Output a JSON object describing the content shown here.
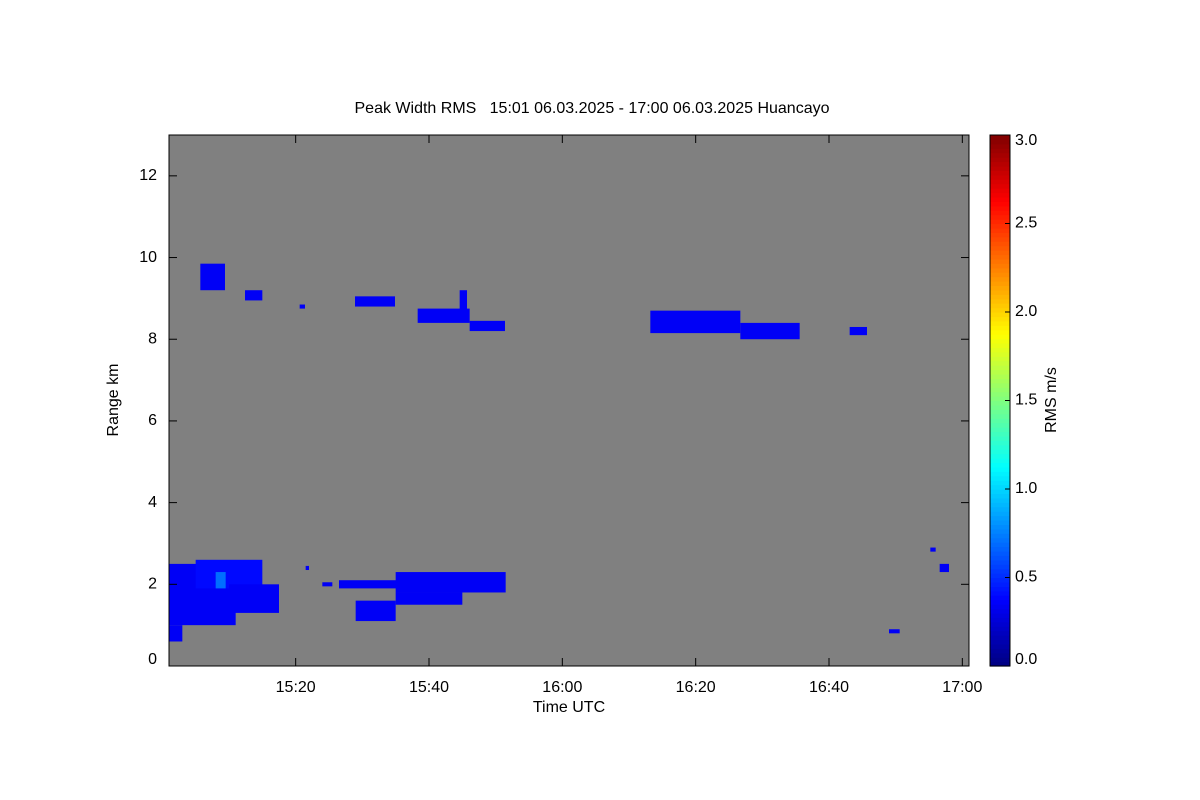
{
  "chart_data": {
    "type": "heatmap",
    "title": "Peak Width RMS   15:01 06.03.2025 - 17:00 06.03.2025 Huancayo",
    "x_label": "Time UTC",
    "y_label": "Range km",
    "colorbar_label": "RMS m/s",
    "xlim": [
      901,
      1021
    ],
    "xticks": [
      {
        "value": 920,
        "label": "15:20"
      },
      {
        "value": 940,
        "label": "15:40"
      },
      {
        "value": 960,
        "label": "16:00"
      },
      {
        "value": 980,
        "label": "16:20"
      },
      {
        "value": 1000,
        "label": "16:40"
      },
      {
        "value": 1020,
        "label": "17:00"
      }
    ],
    "ylim": [
      0,
      13
    ],
    "yticks": [
      0,
      2,
      4,
      6,
      8,
      10,
      12
    ],
    "clim": [
      0,
      3
    ],
    "cticks": [
      {
        "value": 0,
        "label": "0.0"
      },
      {
        "value": 0.5,
        "label": "0.5"
      },
      {
        "value": 1,
        "label": "1.0"
      },
      {
        "value": 1.5,
        "label": "1.5"
      },
      {
        "value": 2,
        "label": "2.0"
      },
      {
        "value": 2.5,
        "label": "2.5"
      },
      {
        "value": 3,
        "label": "3.0"
      }
    ],
    "colormap": "jet",
    "background": "#808080",
    "cells": [
      {
        "x": [
          901,
          911
        ],
        "y": [
          1.0,
          2.5
        ],
        "value": 0.35
      },
      {
        "x": [
          905,
          915
        ],
        "y": [
          1.9,
          2.6
        ],
        "value": 0.4
      },
      {
        "x": [
          910,
          917.5
        ],
        "y": [
          1.3,
          2.0
        ],
        "value": 0.35
      },
      {
        "x": [
          901,
          903
        ],
        "y": [
          0.6,
          1.0
        ],
        "value": 0.35
      },
      {
        "x": [
          908,
          909.5
        ],
        "y": [
          1.9,
          2.3
        ],
        "value": 0.7
      },
      {
        "x": [
          921.5,
          922
        ],
        "y": [
          2.35,
          2.45
        ],
        "value": 0.35
      },
      {
        "x": [
          924,
          925.5
        ],
        "y": [
          1.95,
          2.05
        ],
        "value": 0.35
      },
      {
        "x": [
          926.5,
          938
        ],
        "y": [
          1.9,
          2.1
        ],
        "value": 0.35
      },
      {
        "x": [
          935,
          951.5
        ],
        "y": [
          1.8,
          2.3
        ],
        "value": 0.35
      },
      {
        "x": [
          935,
          945
        ],
        "y": [
          1.5,
          1.8
        ],
        "value": 0.35
      },
      {
        "x": [
          929,
          935
        ],
        "y": [
          1.1,
          1.6
        ],
        "value": 0.35
      },
      {
        "x": [
          1015.2,
          1016
        ],
        "y": [
          2.8,
          2.9
        ],
        "value": 0.35
      },
      {
        "x": [
          1016.6,
          1018
        ],
        "y": [
          2.3,
          2.5
        ],
        "value": 0.35
      },
      {
        "x": [
          1009,
          1010.6
        ],
        "y": [
          0.8,
          0.9
        ],
        "value": 0.35
      },
      {
        "x": [
          905.7,
          909.4
        ],
        "y": [
          9.2,
          9.85
        ],
        "value": 0.35
      },
      {
        "x": [
          912.4,
          915
        ],
        "y": [
          8.95,
          9.2
        ],
        "value": 0.35
      },
      {
        "x": [
          920.6,
          921.4
        ],
        "y": [
          8.75,
          8.85
        ],
        "value": 0.35
      },
      {
        "x": [
          928.9,
          934.9
        ],
        "y": [
          8.8,
          9.05
        ],
        "value": 0.35
      },
      {
        "x": [
          938.3,
          946.1
        ],
        "y": [
          8.4,
          8.75
        ],
        "value": 0.35
      },
      {
        "x": [
          944.6,
          945.7
        ],
        "y": [
          8.65,
          9.2
        ],
        "value": 0.35
      },
      {
        "x": [
          946.1,
          951.4
        ],
        "y": [
          8.2,
          8.45
        ],
        "value": 0.35
      },
      {
        "x": [
          973.2,
          986.7
        ],
        "y": [
          8.15,
          8.7
        ],
        "value": 0.35
      },
      {
        "x": [
          986.7,
          995.6
        ],
        "y": [
          8.0,
          8.4
        ],
        "value": 0.35
      },
      {
        "x": [
          1003.1,
          1005.7
        ],
        "y": [
          8.1,
          8.3
        ],
        "value": 0.35
      }
    ]
  }
}
